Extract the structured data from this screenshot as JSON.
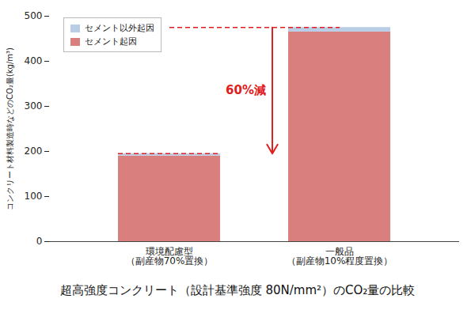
{
  "chart_data": {
    "type": "bar",
    "stacked": true,
    "title": "超高強度コンクリート（設計基準強度 80N/mm²）のCO₂量の比較",
    "y_label": "コンクリート材料製造時などのCO₂量(kg/m³)",
    "categories": [
      "環境配慮型\n（副産物70%置換）",
      "一般品\n（副産物10%程度置換）"
    ],
    "series": [
      {
        "name": "セメント以外起因",
        "color": "#b9cde5",
        "values": [
          5,
          10
        ]
      },
      {
        "name": "セメント起因",
        "color": "#d9807e",
        "values": [
          190,
          465
        ]
      }
    ],
    "ylim": [
      0,
      500
    ],
    "yticks": [
      0,
      100,
      200,
      300,
      400,
      500
    ],
    "grid": false,
    "legend": "top-left",
    "annotations": [
      {
        "text": "60%減"
      }
    ]
  }
}
